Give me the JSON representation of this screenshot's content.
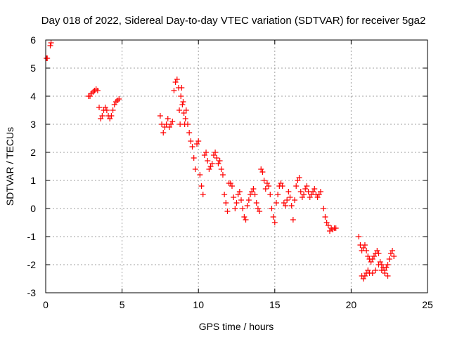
{
  "chart_data": {
    "type": "scatter",
    "title": "Day 018 of 2022, Sidereal Day-to-day VTEC variation (SDTVAR) for receiver 5ga2",
    "xlabel": "GPS time / hours",
    "ylabel": "SDTVAR / TECUs",
    "xlim": [
      0,
      25
    ],
    "ylim": [
      -3,
      6
    ],
    "xticks": [
      0,
      5,
      10,
      15,
      20,
      25
    ],
    "yticks": [
      -3,
      -2,
      -1,
      0,
      1,
      2,
      3,
      4,
      5,
      6
    ],
    "xtick_labels": [
      "0",
      "5",
      "10",
      "15",
      "20",
      "25"
    ],
    "ytick_labels": [
      "-3",
      "-2",
      "-1",
      "0",
      "1",
      "2",
      "3",
      "4",
      "5",
      "6"
    ],
    "grid": true,
    "marker": "plus",
    "color": "#ff0000",
    "series": [
      {
        "name": "SDTVAR",
        "x": [
          0.05,
          0.1,
          0.3,
          0.35,
          2.8,
          2.9,
          3.0,
          3.1,
          3.2,
          3.3,
          3.4,
          3.5,
          3.6,
          3.7,
          3.8,
          3.9,
          4.0,
          4.1,
          4.2,
          4.3,
          4.4,
          4.5,
          4.6,
          4.7,
          4.8,
          7.5,
          7.6,
          7.7,
          7.8,
          7.9,
          8.0,
          8.1,
          8.2,
          8.3,
          8.4,
          8.5,
          8.6,
          8.7,
          8.75,
          8.8,
          8.85,
          8.9,
          8.95,
          9.0,
          9.05,
          9.1,
          9.15,
          9.2,
          9.3,
          9.4,
          9.5,
          9.6,
          9.7,
          9.8,
          9.9,
          10.0,
          10.1,
          10.2,
          10.3,
          10.4,
          10.5,
          10.6,
          10.7,
          10.8,
          10.9,
          11.0,
          11.1,
          11.2,
          11.3,
          11.4,
          11.5,
          11.6,
          11.7,
          11.8,
          11.9,
          12.0,
          12.1,
          12.2,
          12.3,
          12.4,
          12.5,
          12.6,
          12.7,
          12.8,
          12.9,
          13.0,
          13.1,
          13.2,
          13.3,
          13.4,
          13.5,
          13.6,
          13.7,
          13.8,
          13.9,
          14.0,
          14.1,
          14.2,
          14.3,
          14.4,
          14.5,
          14.6,
          14.7,
          14.8,
          14.9,
          15.0,
          15.1,
          15.2,
          15.3,
          15.4,
          15.5,
          15.6,
          15.7,
          15.8,
          15.9,
          16.0,
          16.1,
          16.2,
          16.3,
          16.4,
          16.5,
          16.6,
          16.7,
          16.8,
          16.9,
          17.0,
          17.1,
          17.2,
          17.3,
          17.4,
          17.5,
          17.6,
          17.7,
          17.8,
          17.9,
          18.0,
          18.2,
          18.3,
          18.4,
          18.5,
          18.6,
          18.7,
          18.8,
          18.9,
          19.0,
          20.5,
          20.6,
          20.7,
          20.8,
          20.9,
          21.0,
          21.1,
          21.2,
          21.3,
          21.4,
          21.5,
          21.6,
          21.7,
          21.8,
          21.9,
          22.0,
          22.1,
          22.2,
          22.3,
          22.4,
          22.5,
          22.6,
          22.7,
          22.8,
          20.7,
          20.8,
          20.9,
          21.0,
          21.1,
          21.2,
          21.4,
          21.6,
          21.8,
          22.0,
          22.2,
          22.4
        ],
        "y": [
          5.35,
          5.35,
          5.8,
          5.9,
          4.0,
          4.0,
          4.1,
          4.15,
          4.2,
          4.25,
          4.2,
          3.6,
          3.2,
          3.3,
          3.5,
          3.6,
          3.5,
          3.3,
          3.2,
          3.3,
          3.5,
          3.7,
          3.8,
          3.85,
          3.9,
          3.3,
          3.0,
          2.7,
          2.9,
          3.0,
          3.2,
          2.9,
          3.0,
          3.1,
          4.2,
          4.5,
          4.6,
          4.3,
          3.5,
          3.0,
          4.0,
          4.3,
          3.7,
          3.8,
          3.4,
          3.0,
          3.2,
          3.5,
          3.0,
          2.7,
          2.4,
          2.2,
          1.8,
          1.4,
          2.3,
          2.4,
          1.2,
          0.8,
          0.5,
          1.9,
          2.0,
          1.7,
          1.4,
          1.5,
          1.6,
          1.9,
          2.0,
          1.8,
          1.6,
          1.7,
          1.4,
          1.2,
          0.5,
          0.2,
          -0.1,
          0.9,
          0.9,
          0.8,
          0.4,
          0.0,
          0.2,
          0.5,
          0.6,
          0.3,
          0.0,
          -0.3,
          -0.4,
          0.1,
          0.3,
          0.5,
          0.6,
          0.7,
          0.5,
          0.2,
          0.0,
          -0.1,
          1.4,
          1.3,
          1.0,
          0.7,
          0.9,
          0.8,
          0.5,
          0.0,
          -0.3,
          -0.5,
          0.2,
          0.5,
          0.8,
          0.9,
          0.8,
          0.2,
          0.1,
          0.3,
          0.6,
          0.4,
          0.1,
          -0.4,
          0.3,
          0.8,
          1.0,
          1.1,
          0.6,
          0.4,
          0.5,
          0.7,
          0.8,
          0.6,
          0.4,
          0.5,
          0.6,
          0.7,
          0.5,
          0.4,
          0.5,
          0.6,
          0.0,
          -0.3,
          -0.5,
          -0.6,
          -0.8,
          -0.7,
          -0.75,
          -0.7,
          -0.7,
          -1.0,
          -1.3,
          -1.5,
          -1.4,
          -1.3,
          -1.5,
          -1.7,
          -1.8,
          -1.9,
          -1.8,
          -1.7,
          -1.6,
          -1.5,
          -1.6,
          -1.9,
          -2.0,
          -2.1,
          -2.2,
          -2.1,
          -2.0,
          -1.8,
          -1.6,
          -1.5,
          -1.7,
          -2.4,
          -2.5,
          -2.4,
          -2.3,
          -2.2,
          -2.3,
          -2.3,
          -2.2,
          -2.0,
          -2.2,
          -2.3,
          -2.4
        ]
      }
    ]
  }
}
